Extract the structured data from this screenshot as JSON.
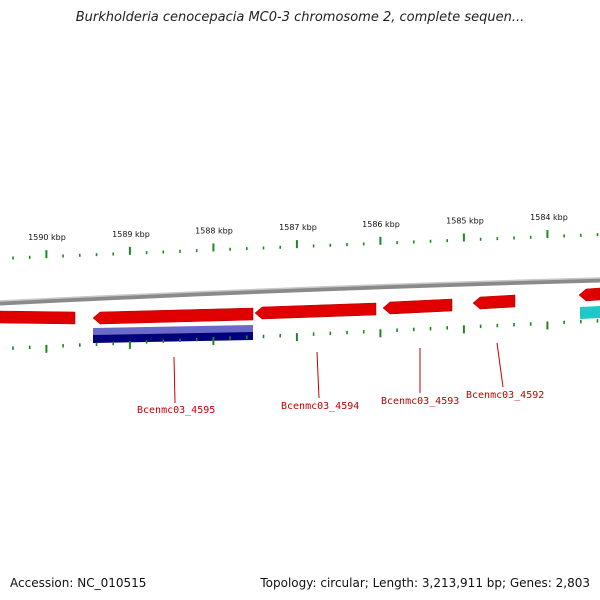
{
  "title": "Burkholderia cenocepacia MC0-3 chromosome 2, complete sequen...",
  "footer": {
    "accession": "Accession: NC_010515",
    "topology": "Topology: circular; Length: 3,213,911 bp; Genes: 2,803"
  },
  "colors": {
    "gene": "#e00000",
    "gene_shadow": "#b00000",
    "blue_feature": "#4a4ab0",
    "blue_feature_dark": "#00007a",
    "cyan_feature": "#20c8c8",
    "ticks": "#1a8a1a",
    "backbone": "#888888",
    "label": "#c00000"
  },
  "scale_labels": [
    "1590 kbp",
    "1589 kbp",
    "1588 kbp",
    "1587 kbp",
    "1586 kbp",
    "1585 kbp",
    "1584 kbp"
  ],
  "gene_labels": [
    "Bcenmc03_4595",
    "Bcenmc03_4594",
    "Bcenmc03_4593",
    "Bcenmc03_4592"
  ]
}
